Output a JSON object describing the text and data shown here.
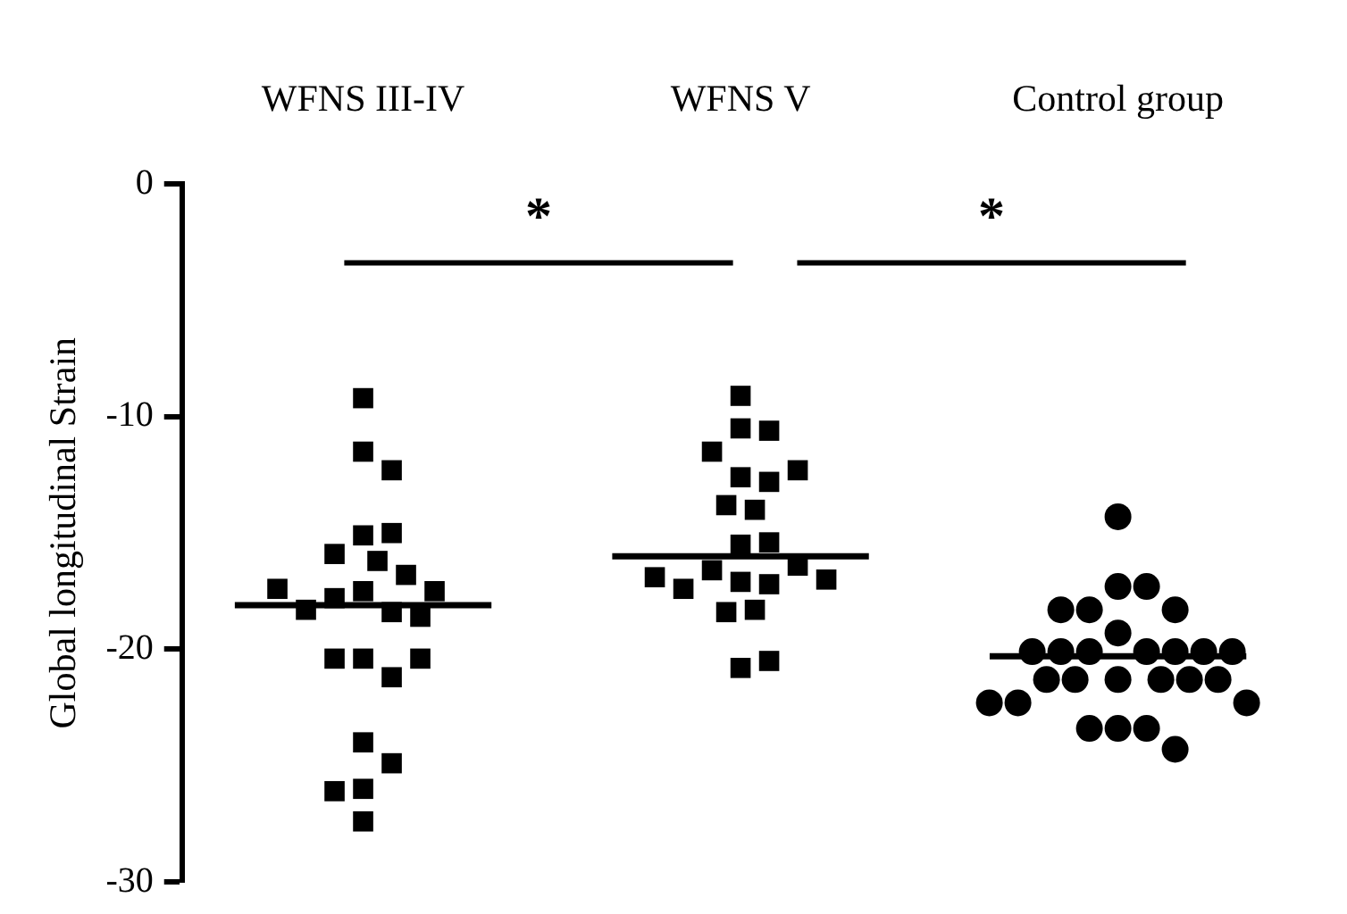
{
  "chart_data": {
    "type": "scatter",
    "ylabel": "Global longitudinal Strain",
    "categories": [
      "WFNS III-IV",
      "WFNS V",
      "Control group"
    ],
    "ylim": [
      -30,
      0
    ],
    "yticks": [
      0,
      -10,
      -20,
      -30
    ],
    "legend": false,
    "series": [
      {
        "color": "#000000",
        "marker": "square",
        "x": [
          "WFNS III-IV",
          "WFNS III-IV",
          "WFNS III-IV",
          "WFNS III-IV",
          "WFNS III-IV",
          "WFNS III-IV",
          "WFNS III-IV",
          "WFNS III-IV",
          "WFNS III-IV",
          "WFNS III-IV",
          "WFNS III-IV",
          "WFNS III-IV",
          "WFNS III-IV",
          "WFNS III-IV",
          "WFNS III-IV",
          "WFNS III-IV",
          "WFNS III-IV",
          "WFNS III-IV",
          "WFNS III-IV",
          "WFNS III-IV",
          "WFNS III-IV",
          "WFNS III-IV",
          "WFNS III-IV",
          "WFNS III-IV"
        ],
        "values": [
          -9.2,
          -11.5,
          -12.3,
          -15.1,
          -15.0,
          -16.2,
          -15.9,
          -16.8,
          -17.5,
          -17.8,
          -18.4,
          -18.6,
          -18.3,
          -17.5,
          -17.4,
          -20.4,
          -21.2,
          -20.4,
          -20.4,
          -24.0,
          -24.9,
          -26.0,
          -26.1,
          -27.4
        ]
      },
      {
        "color": "#000000",
        "marker": "square",
        "x": [
          "WFNS V",
          "WFNS V",
          "WFNS V",
          "WFNS V",
          "WFNS V",
          "WFNS V",
          "WFNS V",
          "WFNS V",
          "WFNS V",
          "WFNS V",
          "WFNS V",
          "WFNS V",
          "WFNS V",
          "WFNS V",
          "WFNS V",
          "WFNS V",
          "WFNS V",
          "WFNS V",
          "WFNS V",
          "WFNS V",
          "WFNS V",
          "WFNS V"
        ],
        "values": [
          -9.1,
          -10.5,
          -10.6,
          -11.5,
          -12.6,
          -12.8,
          -12.3,
          -13.8,
          -14.0,
          -15.5,
          -15.4,
          -17.1,
          -17.2,
          -16.6,
          -16.4,
          -17.4,
          -17.0,
          -16.9,
          -18.3,
          -18.4,
          -20.8,
          -20.5
        ]
      },
      {
        "color": "#000000",
        "marker": "circle",
        "x": [
          "Control group",
          "Control group",
          "Control group",
          "Control group",
          "Control group",
          "Control group",
          "Control group",
          "Control group",
          "Control group",
          "Control group",
          "Control group",
          "Control group",
          "Control group",
          "Control group",
          "Control group",
          "Control group",
          "Control group",
          "Control group",
          "Control group",
          "Control group",
          "Control group",
          "Control group",
          "Control group",
          "Control group",
          "Control group",
          "Control group",
          "Control group"
        ],
        "values": [
          -14.3,
          -17.3,
          -17.3,
          -18.3,
          -18.3,
          -18.3,
          -19.3,
          -20.1,
          -20.1,
          -20.1,
          -20.1,
          -20.1,
          -20.1,
          -20.1,
          -21.3,
          -21.3,
          -21.3,
          -21.3,
          -21.3,
          -21.3,
          -22.3,
          -22.3,
          -22.3,
          -23.4,
          -23.4,
          -23.4,
          -24.3
        ]
      },
      {
        "type": "box",
        "color": "#000000",
        "boxes": [
          {
            "low": -18.1,
            "q1": -18.1,
            "median": -18.1,
            "q3": -18.1,
            "high": -18.1
          },
          {
            "low": -16.0,
            "q1": -16.0,
            "median": -16.0,
            "q3": -16.0,
            "high": -16.0
          },
          {
            "low": -20.3,
            "q1": -20.3,
            "median": -20.3,
            "q3": -20.3,
            "high": -20.3
          }
        ]
      }
    ],
    "annotations": [
      "*",
      "*"
    ]
  }
}
